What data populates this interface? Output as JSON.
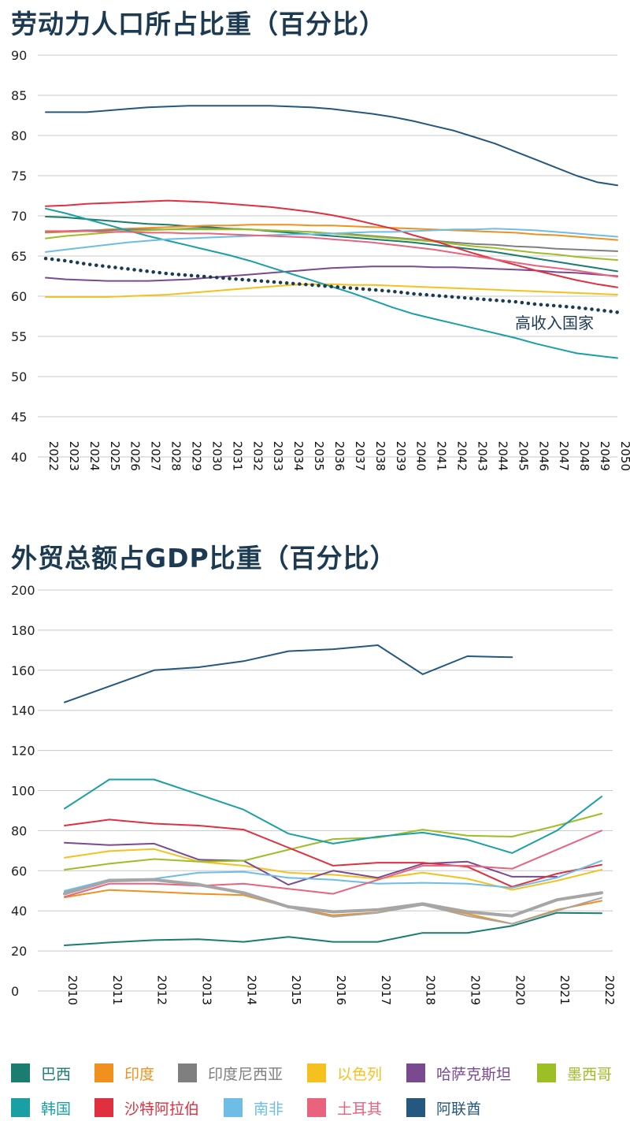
{
  "charts": [
    {
      "title": "劳动力人口所占比重（百分比）"
    },
    {
      "title": "外贸总额占GDP比重（百分比）"
    }
  ],
  "chart_data": [
    {
      "type": "line",
      "title": "劳动力人口所占比重（百分比）",
      "xlabel": "",
      "ylabel": "",
      "x": [
        2022,
        2023,
        2024,
        2025,
        2026,
        2027,
        2028,
        2029,
        2030,
        2031,
        2032,
        2033,
        2034,
        2035,
        2036,
        2037,
        2038,
        2039,
        2040,
        2041,
        2042,
        2043,
        2044,
        2045,
        2046,
        2047,
        2048,
        2049,
        2050
      ],
      "ylim": [
        40,
        90
      ],
      "yticks": [
        40,
        45,
        50,
        55,
        60,
        65,
        70,
        75,
        80,
        85,
        90
      ],
      "grid": true,
      "annotation": "高收入国家",
      "series": [
        {
          "name": "巴西",
          "color": "#1a7d6f",
          "values": [
            69.9,
            69.8,
            69.6,
            69.4,
            69.2,
            69.0,
            68.9,
            68.7,
            68.6,
            68.4,
            68.3,
            68.1,
            67.9,
            67.7,
            67.5,
            67.3,
            67.1,
            66.9,
            66.7,
            66.4,
            66.1,
            65.8,
            65.5,
            65.1,
            64.7,
            64.3,
            63.9,
            63.5,
            63.1
          ]
        },
        {
          "name": "印度",
          "color": "#f0901e",
          "values": [
            67.9,
            68.0,
            68.1,
            68.3,
            68.4,
            68.5,
            68.6,
            68.7,
            68.8,
            68.8,
            68.9,
            68.9,
            68.9,
            68.8,
            68.8,
            68.7,
            68.6,
            68.5,
            68.4,
            68.3,
            68.2,
            68.1,
            68.0,
            67.9,
            67.7,
            67.6,
            67.4,
            67.2,
            67.0
          ]
        },
        {
          "name": "印度尼西亚",
          "color": "#7f7f7f",
          "values": [
            68.0,
            68.1,
            68.2,
            68.2,
            68.3,
            68.3,
            68.3,
            68.4,
            68.4,
            68.4,
            68.3,
            68.2,
            68.1,
            68.0,
            67.8,
            67.7,
            67.5,
            67.3,
            67.1,
            66.9,
            66.7,
            66.5,
            66.4,
            66.2,
            66.1,
            65.9,
            65.8,
            65.7,
            65.6
          ]
        },
        {
          "name": "以色列",
          "color": "#f5c11e",
          "values": [
            59.9,
            59.9,
            59.9,
            59.9,
            60.0,
            60.1,
            60.2,
            60.4,
            60.6,
            60.8,
            61.0,
            61.2,
            61.4,
            61.5,
            61.5,
            61.4,
            61.4,
            61.3,
            61.2,
            61.1,
            61.0,
            60.9,
            60.8,
            60.7,
            60.6,
            60.5,
            60.4,
            60.3,
            60.2
          ]
        },
        {
          "name": "哈萨克斯坦",
          "color": "#7a4a91",
          "values": [
            62.3,
            62.1,
            62.0,
            61.9,
            61.9,
            61.9,
            62.0,
            62.1,
            62.3,
            62.5,
            62.7,
            62.9,
            63.1,
            63.3,
            63.5,
            63.6,
            63.7,
            63.7,
            63.7,
            63.6,
            63.6,
            63.5,
            63.4,
            63.3,
            63.2,
            63.0,
            62.9,
            62.7,
            62.5
          ]
        },
        {
          "name": "墨西哥",
          "color": "#9dbf26",
          "values": [
            67.2,
            67.5,
            67.7,
            67.9,
            68.1,
            68.2,
            68.3,
            68.3,
            68.3,
            68.3,
            68.3,
            68.2,
            68.1,
            68.0,
            67.8,
            67.6,
            67.4,
            67.2,
            67.0,
            66.8,
            66.5,
            66.2,
            66.0,
            65.7,
            65.4,
            65.2,
            64.9,
            64.7,
            64.5
          ]
        },
        {
          "name": "韩国",
          "color": "#1aa0a4",
          "values": [
            70.9,
            70.3,
            69.6,
            68.9,
            68.2,
            67.5,
            66.9,
            66.3,
            65.7,
            65.1,
            64.4,
            63.6,
            62.8,
            62.0,
            61.2,
            60.4,
            59.5,
            58.6,
            57.8,
            57.2,
            56.6,
            56.0,
            55.4,
            54.8,
            54.1,
            53.5,
            52.9,
            52.6,
            52.3
          ]
        },
        {
          "name": "沙特阿拉伯",
          "color": "#e03040",
          "values": [
            71.2,
            71.3,
            71.5,
            71.6,
            71.7,
            71.8,
            71.9,
            71.8,
            71.7,
            71.5,
            71.3,
            71.1,
            70.8,
            70.5,
            70.1,
            69.6,
            69.0,
            68.4,
            67.6,
            66.9,
            66.1,
            65.3,
            64.6,
            63.9,
            63.2,
            62.6,
            62.0,
            61.5,
            61.1
          ]
        },
        {
          "name": "南非",
          "color": "#6ebde6",
          "values": [
            65.5,
            65.8,
            66.1,
            66.4,
            66.7,
            66.9,
            67.1,
            67.2,
            67.3,
            67.4,
            67.5,
            67.6,
            67.7,
            67.7,
            67.8,
            67.9,
            68.0,
            68.0,
            68.1,
            68.2,
            68.3,
            68.3,
            68.4,
            68.3,
            68.2,
            68.0,
            67.8,
            67.6,
            67.4
          ]
        },
        {
          "name": "土耳其",
          "color": "#e8637e",
          "values": [
            68.1,
            68.1,
            68.1,
            68.0,
            68.0,
            67.9,
            67.9,
            67.8,
            67.8,
            67.7,
            67.6,
            67.5,
            67.4,
            67.3,
            67.1,
            66.9,
            66.7,
            66.4,
            66.1,
            65.8,
            65.4,
            65.0,
            64.6,
            64.2,
            63.8,
            63.5,
            63.2,
            62.8,
            62.4
          ]
        },
        {
          "name": "阿联酋",
          "color": "#24587f",
          "values": [
            82.9,
            82.9,
            82.9,
            83.1,
            83.3,
            83.5,
            83.6,
            83.7,
            83.7,
            83.7,
            83.7,
            83.7,
            83.6,
            83.5,
            83.3,
            83.0,
            82.7,
            82.3,
            81.8,
            81.2,
            80.6,
            79.8,
            79.0,
            78.0,
            77.0,
            76.0,
            75.0,
            74.2,
            73.8
          ]
        },
        {
          "name": "高收入国家",
          "color": "#1c3b53",
          "dotted": true,
          "values": [
            64.7,
            64.4,
            64.0,
            63.7,
            63.4,
            63.1,
            62.8,
            62.6,
            62.4,
            62.2,
            62.0,
            61.8,
            61.6,
            61.4,
            61.2,
            61.0,
            60.8,
            60.6,
            60.3,
            60.1,
            59.9,
            59.7,
            59.5,
            59.3,
            59.0,
            58.8,
            58.6,
            58.3,
            58.0
          ]
        }
      ]
    },
    {
      "type": "line",
      "title": "外贸总额占GDP比重（百分比）",
      "xlabel": "",
      "ylabel": "",
      "x": [
        2010,
        2011,
        2012,
        2013,
        2014,
        2015,
        2016,
        2017,
        2018,
        2019,
        2020,
        2021,
        2022
      ],
      "ylim": [
        0,
        200
      ],
      "yticks": [
        0,
        20,
        40,
        60,
        80,
        100,
        120,
        140,
        160,
        180,
        200
      ],
      "grid": true,
      "series": [
        {
          "name": "巴西",
          "color": "#1a7d6f",
          "values": [
            22.8,
            24.2,
            25.4,
            25.8,
            24.5,
            27.0,
            24.5,
            24.5,
            29.0,
            29.0,
            32.5,
            39.0,
            38.8
          ]
        },
        {
          "name": "印度",
          "color": "#f0901e",
          "values": [
            46.7,
            50.4,
            49.5,
            48.5,
            47.8,
            41.9,
            37.8,
            39.2,
            43.0,
            38.5,
            33.5,
            40.5,
            45.0
          ]
        },
        {
          "name": "印度尼西亚",
          "color": "#a6a6a6",
          "values": [
            49.5,
            55.6,
            55.8,
            53.5,
            48.5,
            41.8,
            37.0,
            39.0,
            43.0,
            37.5,
            33.5,
            40.0,
            46.5
          ]
        },
        {
          "name": "以色列",
          "color": "#f5c11e",
          "values": [
            66.5,
            69.8,
            70.8,
            64.5,
            62.5,
            59.0,
            58.0,
            56.0,
            59.0,
            56.0,
            50.5,
            55.0,
            60.5
          ]
        },
        {
          "name": "哈萨克斯坦",
          "color": "#7a4a91",
          "values": [
            74.0,
            72.8,
            73.5,
            65.5,
            65.0,
            53.0,
            60.0,
            56.5,
            63.5,
            64.5,
            57.0,
            57.0,
            null
          ]
        },
        {
          "name": "墨西哥",
          "color": "#9dbf26",
          "values": [
            60.5,
            63.5,
            65.8,
            64.5,
            65.0,
            70.5,
            75.8,
            76.5,
            80.5,
            77.5,
            77.0,
            82.5,
            88.5
          ]
        },
        {
          "name": "韩国",
          "color": "#1aa0a4",
          "values": [
            91.0,
            105.5,
            105.5,
            98.0,
            90.5,
            78.5,
            73.5,
            77.0,
            79.0,
            75.5,
            68.8,
            80.0,
            97.0
          ]
        },
        {
          "name": "沙特阿拉伯",
          "color": "#e03040",
          "values": [
            82.5,
            85.5,
            83.5,
            82.5,
            80.5,
            71.5,
            62.5,
            64.0,
            64.0,
            62.0,
            52.0,
            58.5,
            63.0
          ]
        },
        {
          "name": "南非",
          "color": "#6ebde6",
          "values": [
            50.0,
            55.5,
            56.0,
            59.0,
            59.5,
            56.5,
            55.5,
            53.5,
            54.0,
            53.5,
            51.5,
            56.5,
            65.0
          ]
        },
        {
          "name": "土耳其",
          "color": "#e8637e",
          "values": [
            47.0,
            53.5,
            53.5,
            52.5,
            53.5,
            51.0,
            48.5,
            55.5,
            62.5,
            62.5,
            61.0,
            70.5,
            80.0
          ]
        },
        {
          "name": "阿联酋",
          "color": "#24587f",
          "values": [
            144.0,
            152.0,
            160.0,
            161.5,
            164.5,
            169.5,
            170.5,
            172.5,
            158.0,
            167.0,
            166.5,
            null,
            null
          ]
        },
        {
          "name": "",
          "color": "#a6a6a6",
          "thick": true,
          "values": [
            48.5,
            55.0,
            55.5,
            53.0,
            49.0,
            42.0,
            39.5,
            40.5,
            43.5,
            39.5,
            37.5,
            45.5,
            49.0
          ]
        }
      ]
    }
  ],
  "legend": [
    {
      "label": "巴西",
      "color": "#1a7d6f"
    },
    {
      "label": "印度",
      "color": "#f0901e"
    },
    {
      "label": "印度尼西亚",
      "color": "#7f7f7f"
    },
    {
      "label": "以色列",
      "color": "#f5c11e"
    },
    {
      "label": "哈萨克斯坦",
      "color": "#7a4a91"
    },
    {
      "label": "墨西哥",
      "color": "#9dbf26"
    },
    {
      "label": "韩国",
      "color": "#1aa0a4"
    },
    {
      "label": "沙特阿拉伯",
      "color": "#e03040"
    },
    {
      "label": "南非",
      "color": "#6ebde6"
    },
    {
      "label": "土耳其",
      "color": "#e8637e"
    },
    {
      "label": "阿联酋",
      "color": "#24587f"
    }
  ]
}
